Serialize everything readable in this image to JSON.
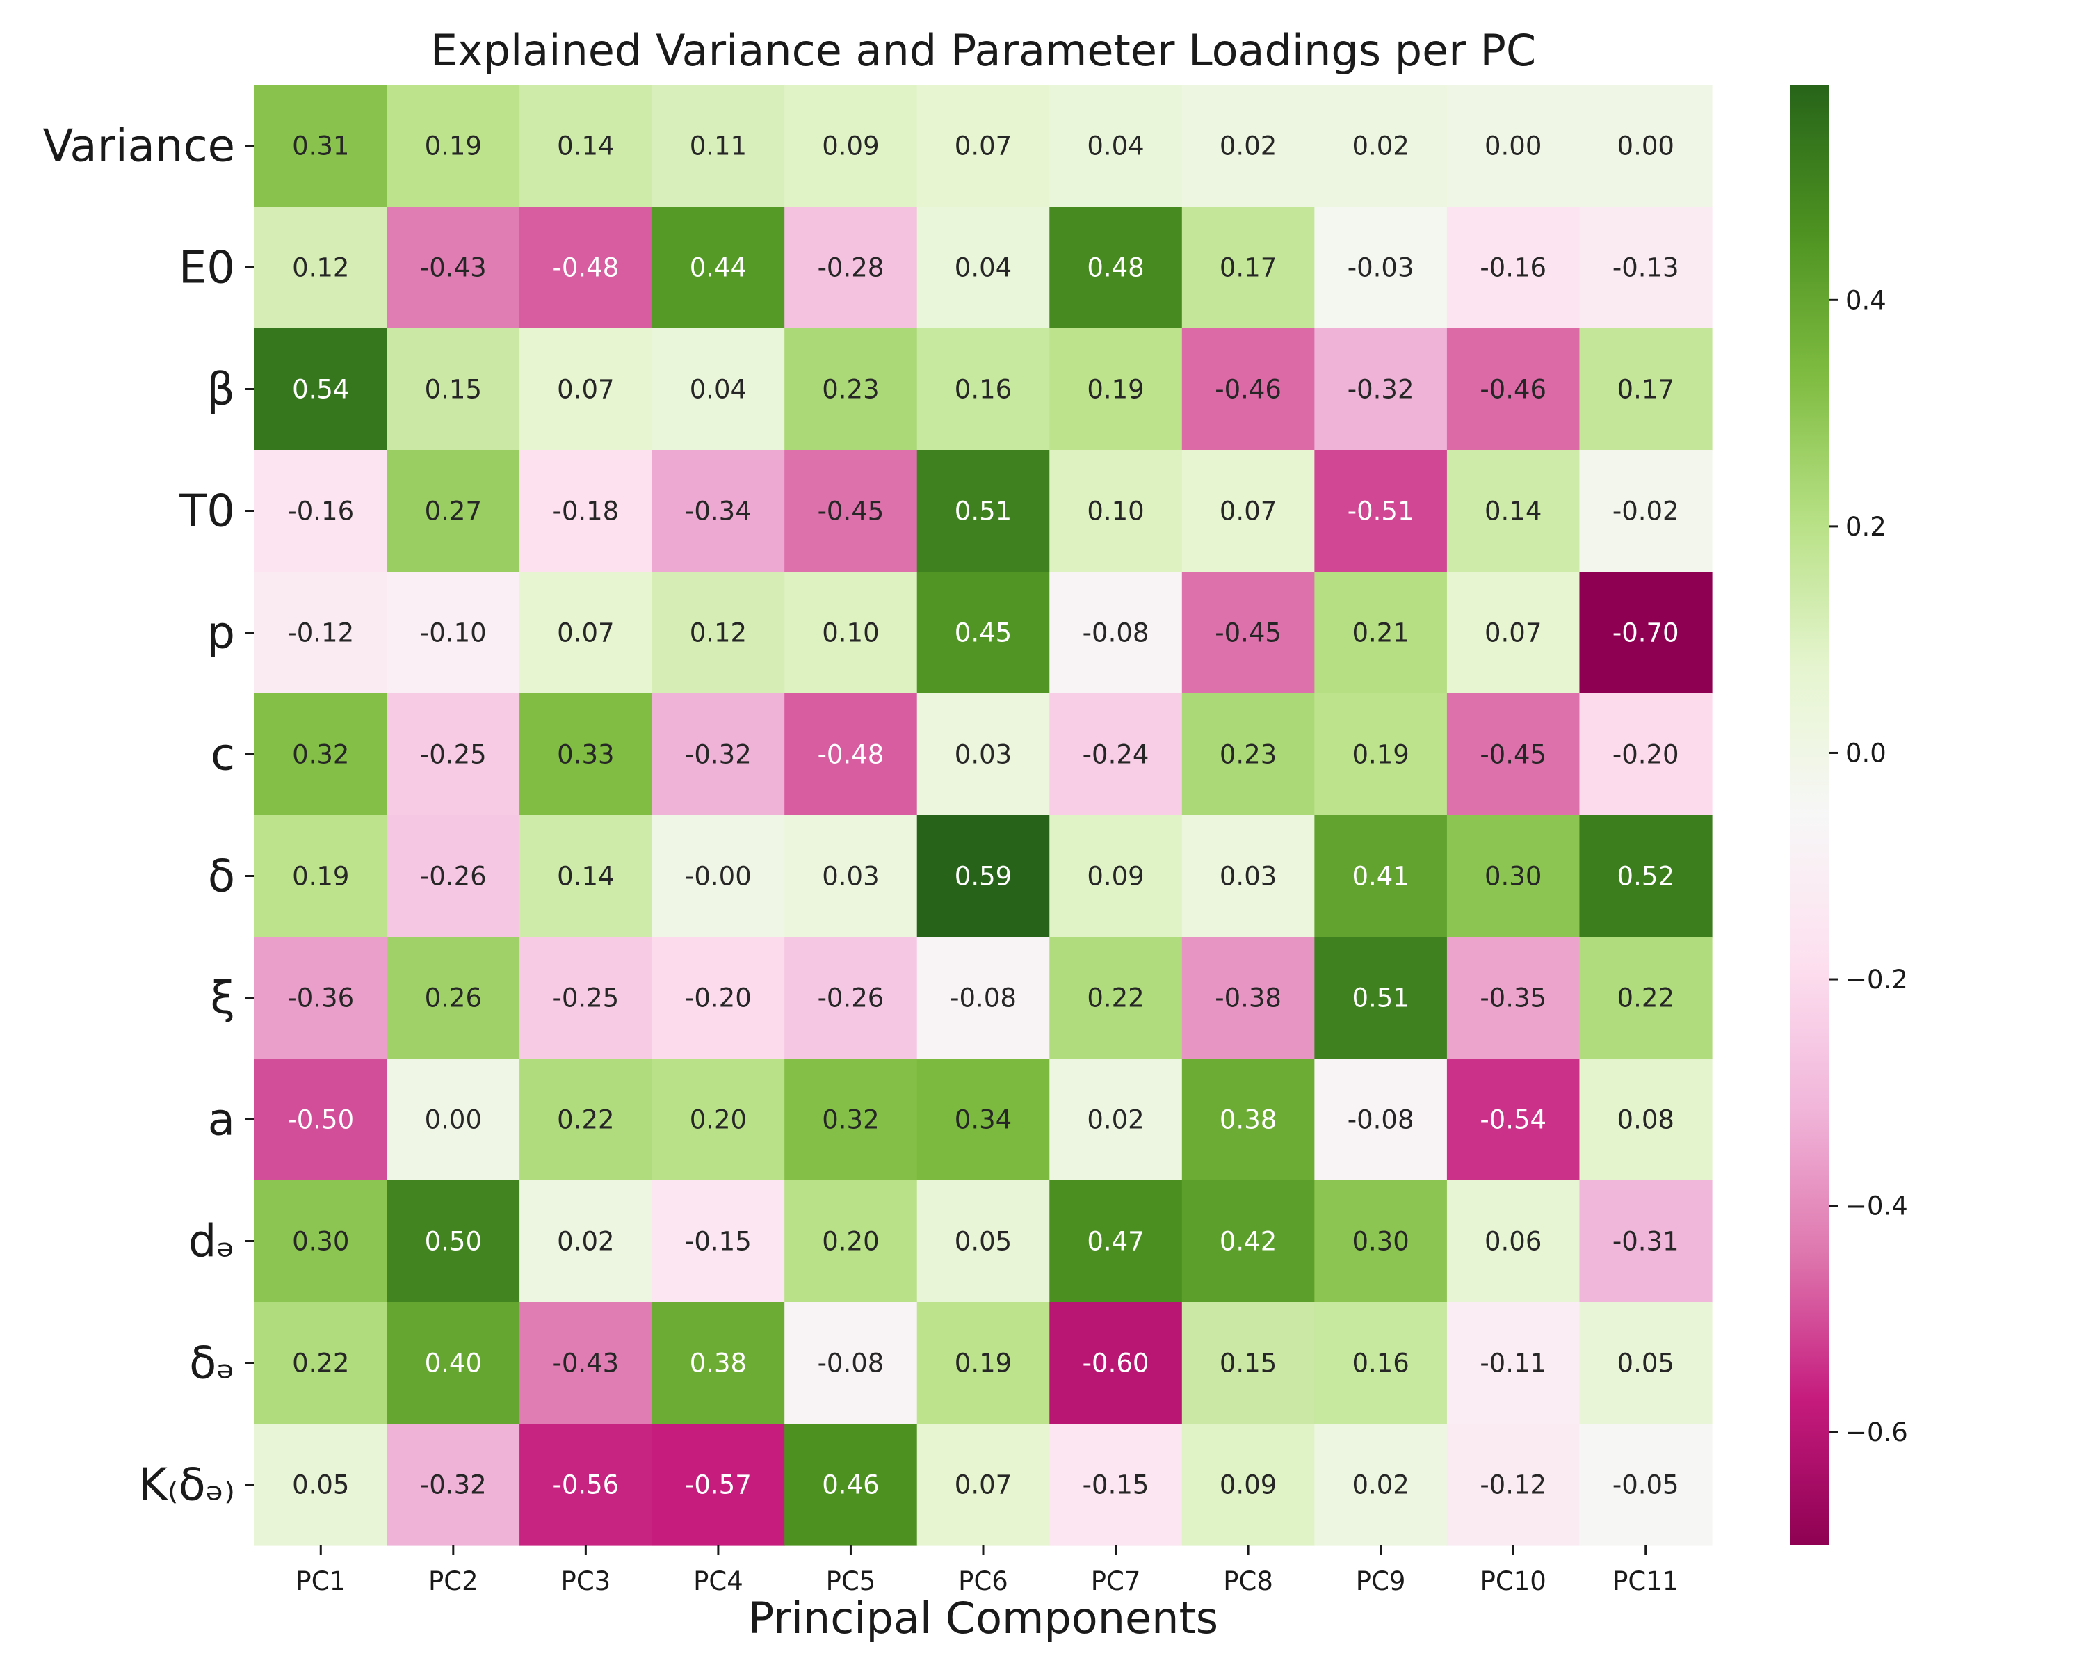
{
  "chart_data": {
    "type": "heatmap",
    "title": "Explained Variance and Parameter Loadings per PC",
    "xlabel": "Principal Components",
    "ylabel": "",
    "x_categories": [
      "PC1",
      "PC2",
      "PC3",
      "PC4",
      "PC5",
      "PC6",
      "PC7",
      "PC8",
      "PC9",
      "PC10",
      "PC11"
    ],
    "y_categories": [
      "Variance",
      "E0",
      "β",
      "T0",
      "p",
      "c",
      "δ",
      "ξ",
      "a",
      "dₔ",
      "δₔ",
      "K₍δₔ₎"
    ],
    "values": [
      [
        "0.31",
        "0.19",
        "0.14",
        "0.11",
        "0.09",
        "0.07",
        "0.04",
        "0.02",
        "0.02",
        "0.00",
        "0.00"
      ],
      [
        "0.12",
        "-0.43",
        "-0.48",
        "0.44",
        "-0.28",
        "0.04",
        "0.48",
        "0.17",
        "-0.03",
        "-0.16",
        "-0.13"
      ],
      [
        "0.54",
        "0.15",
        "0.07",
        "0.04",
        "0.23",
        "0.16",
        "0.19",
        "-0.46",
        "-0.32",
        "-0.46",
        "0.17"
      ],
      [
        "-0.16",
        "0.27",
        "-0.18",
        "-0.34",
        "-0.45",
        "0.51",
        "0.10",
        "0.07",
        "-0.51",
        "0.14",
        "-0.02"
      ],
      [
        "-0.12",
        "-0.10",
        "0.07",
        "0.12",
        "0.10",
        "0.45",
        "-0.08",
        "-0.45",
        "0.21",
        "0.07",
        "-0.70"
      ],
      [
        "0.32",
        "-0.25",
        "0.33",
        "-0.32",
        "-0.48",
        "0.03",
        "-0.24",
        "0.23",
        "0.19",
        "-0.45",
        "-0.20"
      ],
      [
        "0.19",
        "-0.26",
        "0.14",
        "-0.00",
        "0.03",
        "0.59",
        "0.09",
        "0.03",
        "0.41",
        "0.30",
        "0.52"
      ],
      [
        "-0.36",
        "0.26",
        "-0.25",
        "-0.20",
        "-0.26",
        "-0.08",
        "0.22",
        "-0.38",
        "0.51",
        "-0.35",
        "0.22"
      ],
      [
        "-0.50",
        "0.00",
        "0.22",
        "0.20",
        "0.32",
        "0.34",
        "0.02",
        "0.38",
        "-0.08",
        "-0.54",
        "0.08"
      ],
      [
        "0.30",
        "0.50",
        "0.02",
        "-0.15",
        "0.20",
        "0.05",
        "0.47",
        "0.42",
        "0.30",
        "0.06",
        "-0.31"
      ],
      [
        "0.22",
        "0.40",
        "-0.43",
        "0.38",
        "-0.08",
        "0.19",
        "-0.60",
        "0.15",
        "0.16",
        "-0.11",
        "0.05"
      ],
      [
        "0.05",
        "-0.32",
        "-0.56",
        "-0.57",
        "0.46",
        "0.07",
        "-0.15",
        "0.09",
        "0.02",
        "-0.12",
        "-0.05"
      ]
    ],
    "colormap": "PiYG",
    "vmin": -0.7,
    "vmax": 0.59,
    "colorbar_ticks": [
      "0.4",
      "0.2",
      "0.0",
      "−0.2",
      "−0.4",
      "−0.6"
    ],
    "colorbar_tick_values": [
      0.4,
      0.2,
      0.0,
      -0.2,
      -0.4,
      -0.6
    ],
    "annotated": true,
    "colorbar_position": "right"
  }
}
